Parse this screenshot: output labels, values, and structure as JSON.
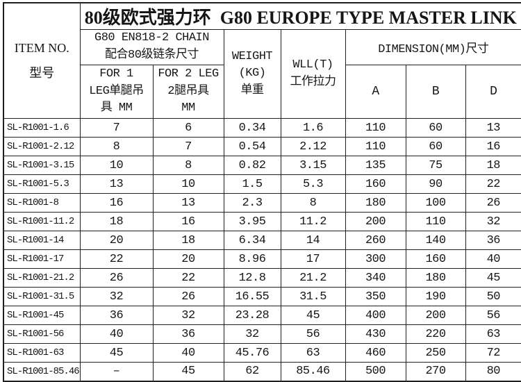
{
  "table": {
    "title": "80级欧式强力环  G80 EUROPE TYPE MASTER LINK",
    "header": {
      "item_no_line1": "ITEM NO.",
      "item_no_line2": "型号",
      "chain_line1": "G80 EN818-2 CHAIN",
      "chain_line2": "配合80级链条尺寸",
      "for1_line1": "FOR 1",
      "for1_line2": "LEG单腿吊",
      "for1_line3": "具 MM",
      "for2_line1": "FOR 2 LEG",
      "for2_line2": "2腿吊具",
      "for2_line3": "MM",
      "weight_line1": "WEIGHT",
      "weight_line2": "(KG)",
      "weight_line3": "单重",
      "wll_line1": "WLL(T)",
      "wll_line2": "工作拉力",
      "dimension": "DIMENSION(MM)尺寸",
      "dim_a": "A",
      "dim_b": "B",
      "dim_d": "D"
    },
    "rows": [
      [
        "SL-R1001-1.6",
        "7",
        "6",
        "0.34",
        "1.6",
        "110",
        "60",
        "13"
      ],
      [
        "SL-R1001-2.12",
        "8",
        "7",
        "0.54",
        "2.12",
        "110",
        "60",
        "16"
      ],
      [
        "SL-R1001-3.15",
        "10",
        "8",
        "0.82",
        "3.15",
        "135",
        "75",
        "18"
      ],
      [
        "SL-R1001-5.3",
        "13",
        "10",
        "1.5",
        "5.3",
        "160",
        "90",
        "22"
      ],
      [
        "SL-R1001-8",
        "16",
        "13",
        "2.3",
        "8",
        "180",
        "100",
        "26"
      ],
      [
        "SL-R1001-11.2",
        "18",
        "16",
        "3.95",
        "11.2",
        "200",
        "110",
        "32"
      ],
      [
        "SL-R1001-14",
        "20",
        "18",
        "6.34",
        "14",
        "260",
        "140",
        "36"
      ],
      [
        "SL-R1001-17",
        "22",
        "20",
        "8.96",
        "17",
        "300",
        "160",
        "40"
      ],
      [
        "SL-R1001-21.2",
        "26",
        "22",
        "12.8",
        "21.2",
        "340",
        "180",
        "45"
      ],
      [
        "SL-R1001-31.5",
        "32",
        "26",
        "16.55",
        "31.5",
        "350",
        "190",
        "50"
      ],
      [
        "SL-R1001-45",
        "36",
        "32",
        "23.28",
        "45",
        "400",
        "200",
        "56"
      ],
      [
        "SL-R1001-56",
        "40",
        "36",
        "32",
        "56",
        "430",
        "220",
        "63"
      ],
      [
        "SL-R1001-63",
        "45",
        "40",
        "45.76",
        "63",
        "460",
        "250",
        "72"
      ],
      [
        "SL-R1001-85.46",
        "–",
        "45",
        "62",
        "85.46",
        "500",
        "270",
        "80"
      ]
    ]
  }
}
